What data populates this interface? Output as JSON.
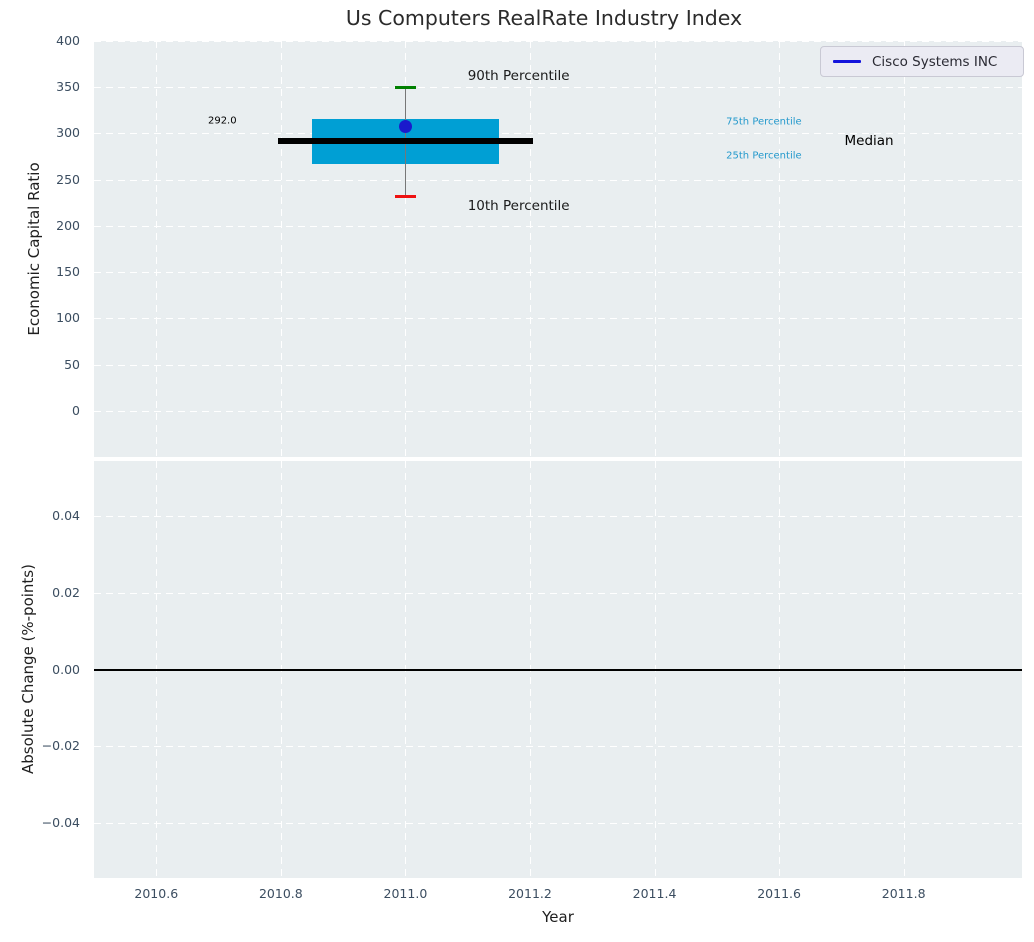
{
  "figure": {
    "title": "Us Computers RealRate Industry Index"
  },
  "legend": {
    "label": "Cisco Systems INC"
  },
  "colors": {
    "axes_bg": "#e9eef0",
    "grid": "#ffffff",
    "box_fill": "#009fd4",
    "median_line": "#000000",
    "whisker": "#777777",
    "cap_90": "#008000",
    "cap_10": "#ee1111",
    "marker_blue": "#1a1acc",
    "legend_line": "#1414dc",
    "percentile_text": "#2499cc",
    "tick_text": "#3b4d60",
    "zero_line": "#000000"
  },
  "chart_data": [
    {
      "type": "boxplot",
      "title": "Us Computers RealRate Industry Index",
      "xlabel": "Year",
      "ylabel": "Economic Capital Ratio",
      "xlim": [
        2010.5,
        2011.99
      ],
      "ylim": [
        -50,
        400
      ],
      "grid": true,
      "legend_entries": [
        "Cisco Systems INC"
      ],
      "legend_position": "upper right",
      "xticks": {
        "values": [
          2010.6,
          2010.8,
          2011.0,
          2011.2,
          2011.4,
          2011.6,
          2011.8
        ],
        "labels": [
          "2010.6",
          "2010.8",
          "2011.0",
          "2011.2",
          "2011.4",
          "2011.6",
          "2011.8"
        ]
      },
      "yticks": {
        "values": [
          0,
          50,
          100,
          150,
          200,
          250,
          300,
          350,
          400
        ],
        "labels": [
          "0",
          "50",
          "100",
          "150",
          "200",
          "250",
          "300",
          "350",
          "400"
        ]
      },
      "box": {
        "x": 2011.0,
        "p10": 232,
        "p25": 267,
        "median": 292,
        "p75": 316,
        "p90": 350,
        "box_halfwidth_years": 0.15,
        "median_halfwidth_years": 0.205,
        "cap_halfwidth_years": 0.017
      },
      "series": [
        {
          "name": "Cisco Systems INC",
          "x": [
            2011.0
          ],
          "y": [
            308
          ]
        }
      ],
      "annotations": [
        {
          "id": "90th-percentile",
          "text": "90th Percentile",
          "x": 2011.1,
          "y": 362,
          "size": 13.5,
          "color": "#1a1a1a"
        },
        {
          "id": "10th-percentile",
          "text": "10th Percentile",
          "x": 2011.1,
          "y": 222,
          "size": 13.5,
          "color": "#1a1a1a"
        },
        {
          "id": "75th-percentile",
          "text": "75th Percentile",
          "x": 2011.515,
          "y": 312,
          "size": 10,
          "color": "#2499cc"
        },
        {
          "id": "25th-percentile",
          "text": "25th Percentile",
          "x": 2011.515,
          "y": 276,
          "size": 10,
          "color": "#2499cc"
        },
        {
          "id": "median",
          "text": "Median",
          "x": 2011.705,
          "y": 292,
          "size": 13.5,
          "color": "#000000"
        },
        {
          "id": "median-value",
          "text": "292.0",
          "x": 2010.683,
          "y": 314,
          "size": 10,
          "color": "#000000"
        }
      ]
    },
    {
      "type": "line",
      "xlabel": "Year",
      "ylabel": "Absolute Change (%-points)",
      "xlim": [
        2010.5,
        2011.99
      ],
      "ylim": [
        -0.0545,
        0.0545
      ],
      "grid": true,
      "zero_line_y": 0.0,
      "xticks": {
        "values": [
          2010.6,
          2010.8,
          2011.0,
          2011.2,
          2011.4,
          2011.6,
          2011.8
        ],
        "labels": [
          "2010.6",
          "2010.8",
          "2011.0",
          "2011.2",
          "2011.4",
          "2011.6",
          "2011.8"
        ]
      },
      "yticks": {
        "values": [
          -0.04,
          -0.02,
          0.0,
          0.02,
          0.04
        ],
        "labels": [
          "−0.04",
          "−0.02",
          "0.00",
          "0.02",
          "0.04"
        ]
      },
      "series": []
    }
  ]
}
